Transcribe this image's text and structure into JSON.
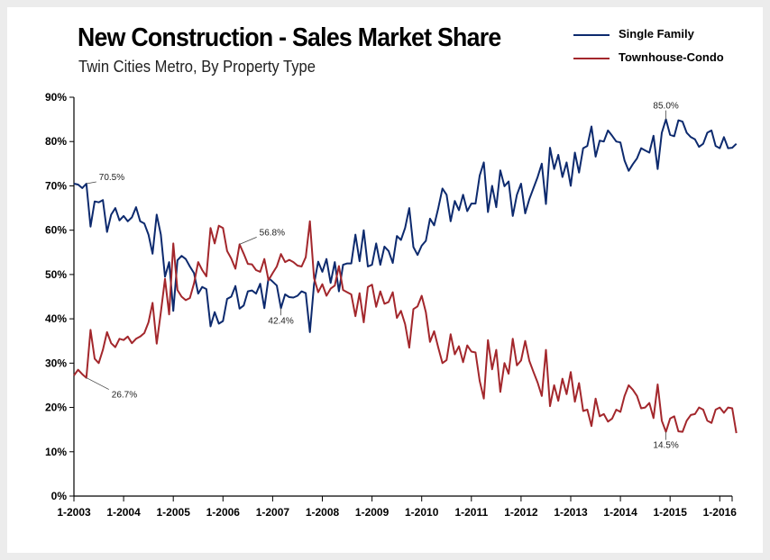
{
  "chart_data": {
    "type": "line",
    "title": "New Construction - Sales Market Share",
    "subtitle": "Twin Cities Metro, By Property Type",
    "xlabel": "",
    "ylabel": "",
    "ylim": [
      0,
      90
    ],
    "yticks": [
      "0%",
      "10%",
      "20%",
      "30%",
      "40%",
      "50%",
      "60%",
      "70%",
      "80%",
      "90%"
    ],
    "xticks": [
      "1-2003",
      "1-2004",
      "1-2005",
      "1-2006",
      "1-2007",
      "1-2008",
      "1-2009",
      "1-2010",
      "1-2011",
      "1-2012",
      "1-2013",
      "1-2014",
      "1-2015",
      "1-2016"
    ],
    "x_start": "1-2003",
    "x_unit": "month",
    "legend_position": "top-right",
    "series": [
      {
        "name": "Single Family",
        "color": "#0d2a6e",
        "values": [
          70.5,
          70.3,
          69.5,
          70.5,
          60.8,
          66.5,
          66.3,
          66.8,
          59.6,
          63.5,
          65.0,
          62.2,
          63.2,
          62.0,
          62.9,
          65.2,
          62.0,
          61.5,
          59.0,
          54.7,
          63.5,
          59.0,
          49.5,
          52.8,
          41.8,
          53.2,
          54.2,
          53.5,
          51.8,
          50.3,
          45.7,
          47.2,
          46.7,
          38.3,
          41.5,
          38.9,
          39.5,
          44.5,
          45.0,
          47.4,
          42.3,
          43.0,
          46.2,
          46.4,
          45.7,
          47.9,
          42.4,
          49.2,
          48.4,
          47.5,
          42.4,
          45.5,
          44.9,
          44.8,
          45.2,
          46.2,
          45.8,
          37.0,
          47.8,
          52.9,
          50.6,
          53.5,
          48.1,
          52.8,
          46.2,
          52.2,
          52.5,
          52.5,
          59.0,
          53.0,
          60.0,
          51.8,
          52.2,
          57.0,
          52.2,
          56.3,
          55.3,
          52.6,
          58.7,
          57.8,
          60.5,
          65.0,
          56.2,
          54.4,
          56.5,
          57.6,
          62.6,
          61.1,
          65.0,
          69.4,
          68.0,
          62.0,
          66.6,
          64.5,
          68.0,
          64.3,
          66.0,
          66.0,
          72.3,
          75.3,
          64.1,
          70.0,
          65.2,
          73.5,
          69.9,
          71.0,
          63.2,
          68.0,
          70.5,
          63.8,
          67.0,
          69.5,
          72.0,
          75.0,
          65.9,
          78.6,
          73.8,
          77.0,
          72.0,
          75.3,
          70.0,
          77.5,
          73.0,
          78.5,
          79.0,
          83.4,
          76.6,
          80.2,
          80.0,
          82.5,
          81.3,
          80.0,
          79.8,
          75.7,
          73.4,
          74.9,
          76.2,
          78.5,
          78.0,
          77.5,
          81.3,
          73.8,
          82.0,
          85.0,
          81.5,
          81.2,
          84.8,
          84.5,
          82.0,
          81.0,
          80.5,
          78.8,
          79.5,
          82.0,
          82.5,
          79.0,
          78.5,
          81.0,
          78.5,
          78.6,
          79.5
        ]
      },
      {
        "name": "Townhouse-Condo",
        "color": "#a3272c",
        "values": [
          27.2,
          28.5,
          27.5,
          26.7,
          37.5,
          31.0,
          30.0,
          33.0,
          37.0,
          34.5,
          33.6,
          35.5,
          35.2,
          36.0,
          34.5,
          35.5,
          36.0,
          36.8,
          39.2,
          43.6,
          34.4,
          41.5,
          49.0,
          41.0,
          57.0,
          46.5,
          45.0,
          44.2,
          44.7,
          48.0,
          52.8,
          51.0,
          49.6,
          60.5,
          57.0,
          61.0,
          60.5,
          55.3,
          53.6,
          51.3,
          56.8,
          54.7,
          52.4,
          52.3,
          51.0,
          50.6,
          53.5,
          48.7,
          50.3,
          51.8,
          54.6,
          52.8,
          53.3,
          52.8,
          52.0,
          51.8,
          53.9,
          62.0,
          49.2,
          46.0,
          47.8,
          45.2,
          46.8,
          47.5,
          51.9,
          46.5,
          46.0,
          45.5,
          40.6,
          45.8,
          39.2,
          47.2,
          47.7,
          42.7,
          46.2,
          43.4,
          43.8,
          46.0,
          40.2,
          41.8,
          38.8,
          33.5,
          42.2,
          42.8,
          45.2,
          41.5,
          34.8,
          37.2,
          33.5,
          30.0,
          30.7,
          36.5,
          32.0,
          33.8,
          30.2,
          34.0,
          32.6,
          32.4,
          26.0,
          22.0,
          35.2,
          28.6,
          33.0,
          23.5,
          30.0,
          27.6,
          35.5,
          29.5,
          30.6,
          35.0,
          30.5,
          28.0,
          25.6,
          22.6,
          33.0,
          20.3,
          25.0,
          21.5,
          26.5,
          23.0,
          28.0,
          21.3,
          25.5,
          19.2,
          19.5,
          15.8,
          22.0,
          18.0,
          18.5,
          16.8,
          17.5,
          19.5,
          19.0,
          22.6,
          25.0,
          24.0,
          22.6,
          19.8,
          20.0,
          21.0,
          17.6,
          25.2,
          17.0,
          14.5,
          17.5,
          18.0,
          14.6,
          14.5,
          17.0,
          18.3,
          18.5,
          20.0,
          19.5,
          17.0,
          16.5,
          19.5,
          20.0,
          18.8,
          20.0,
          19.8,
          14.2
        ]
      }
    ],
    "annotations": [
      {
        "text": "70.5%",
        "series": 0,
        "index": 3
      },
      {
        "text": "26.7%",
        "series": 1,
        "index": 3
      },
      {
        "text": "56.8%",
        "series": 1,
        "index": 40
      },
      {
        "text": "42.4%",
        "series": 0,
        "index": 50
      },
      {
        "text": "85.0%",
        "series": 0,
        "index": 143
      },
      {
        "text": "14.5%",
        "series": 1,
        "index": 143
      }
    ]
  }
}
